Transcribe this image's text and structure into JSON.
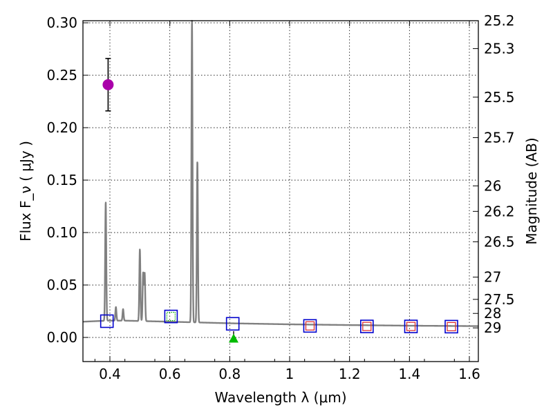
{
  "chart_data": {
    "type": "scatter",
    "xlabel": "Wavelength  λ (μm)",
    "ylabel": "Flux  F_ν  ( μJy )",
    "ylabel_right": "Magnitude (AB)",
    "xlim": [
      0.31,
      1.63
    ],
    "ylim": [
      -0.023,
      0.302
    ],
    "grid": true,
    "x_ticks": [
      0.4,
      0.6,
      0.8,
      1.0,
      1.2,
      1.4,
      1.6
    ],
    "x_tick_labels": [
      "0.4",
      "0.6",
      "0.8",
      "1",
      "1.2",
      "1.4",
      "1.6"
    ],
    "y_ticks": [
      0.0,
      0.05,
      0.1,
      0.15,
      0.2,
      0.25,
      0.3
    ],
    "y_tick_labels": [
      "0.00",
      "0.05",
      "0.10",
      "0.15",
      "0.20",
      "0.25",
      "0.30"
    ],
    "mag_ticks": [
      {
        "label": "25.2",
        "flux": 0.302
      },
      {
        "label": "25.3",
        "flux": 0.2754
      },
      {
        "label": "25.5",
        "flux": 0.2291
      },
      {
        "label": "25.7",
        "flux": 0.1905
      },
      {
        "label": "26",
        "flux": 0.1445
      },
      {
        "label": "26.2",
        "flux": 0.1202
      },
      {
        "label": "26.5",
        "flux": 0.0912
      },
      {
        "label": "27",
        "flux": 0.0575
      },
      {
        "label": "27.5",
        "flux": 0.0363
      },
      {
        "label": "28",
        "flux": 0.0229
      },
      {
        "label": "29",
        "flux": 0.0091
      }
    ],
    "series": [
      {
        "name": "model spectrum",
        "kind": "line",
        "color": "#808080",
        "continuum": [
          [
            0.31,
            0.015
          ],
          [
            0.39,
            0.016
          ],
          [
            0.45,
            0.016
          ],
          [
            0.6,
            0.015
          ],
          [
            0.8,
            0.0135
          ],
          [
            1.0,
            0.0125
          ],
          [
            1.2,
            0.0118
          ],
          [
            1.4,
            0.0112
          ],
          [
            1.63,
            0.0108
          ]
        ],
        "emission_lines": [
          {
            "x": 0.386,
            "peak": 0.129
          },
          {
            "x": 0.42,
            "peak": 0.029
          },
          {
            "x": 0.444,
            "peak": 0.027
          },
          {
            "x": 0.5,
            "peak": 0.084
          },
          {
            "x": 0.511,
            "peak": 0.061
          },
          {
            "x": 0.516,
            "peak": 0.061
          },
          {
            "x": 0.674,
            "peak": 0.302
          },
          {
            "x": 0.692,
            "peak": 0.168
          }
        ]
      },
      {
        "name": "model photometry",
        "kind": "open-square",
        "color": "#0000cc",
        "points": [
          [
            0.39,
            0.0155
          ],
          [
            0.604,
            0.02
          ],
          [
            0.81,
            0.013
          ],
          [
            1.068,
            0.011
          ],
          [
            1.258,
            0.0105
          ],
          [
            1.405,
            0.0105
          ],
          [
            1.54,
            0.0103
          ]
        ]
      },
      {
        "name": "observed upper limits",
        "kind": "open-square",
        "color": "#dd3333",
        "points": [
          [
            1.068,
            0.011
          ],
          [
            1.258,
            0.0105
          ],
          [
            1.405,
            0.0105
          ],
          [
            1.54,
            0.0103
          ]
        ]
      },
      {
        "name": "observed detection",
        "kind": "circle-errorbar",
        "color": "#aa00aa",
        "points": [
          {
            "x": 0.394,
            "y": 0.241,
            "yerr_low": 0.216,
            "yerr_high": 0.266
          }
        ]
      },
      {
        "name": "non-detection",
        "kind": "triangle",
        "color": "#00bb00",
        "points": [
          {
            "x": 0.813,
            "y": -0.001,
            "arrow_top": 0.006
          }
        ]
      },
      {
        "name": "dotted marker",
        "kind": "dotted-square",
        "color": "#00aa00",
        "points": [
          [
            0.604,
            0.02
          ]
        ]
      }
    ]
  }
}
